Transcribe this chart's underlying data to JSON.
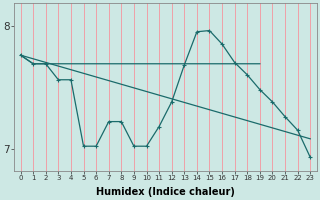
{
  "xlabel": "Humidex (Indice chaleur)",
  "ylabel": "",
  "xlim": [
    -0.5,
    23.5
  ],
  "ylim": [
    6.82,
    8.18
  ],
  "yticks": [
    7,
    8
  ],
  "xticks": [
    0,
    1,
    2,
    3,
    4,
    5,
    6,
    7,
    8,
    9,
    10,
    11,
    12,
    13,
    14,
    15,
    16,
    17,
    18,
    19,
    20,
    21,
    22,
    23
  ],
  "bg_color": "#cde8e4",
  "grid_color": "#f0a0a8",
  "line_color": "#1a6b6b",
  "line1_x": [
    0,
    1,
    2,
    3,
    4,
    5,
    6,
    7,
    8,
    9,
    10,
    11,
    12,
    13,
    14,
    15,
    16,
    17,
    18,
    19,
    20,
    21,
    22,
    23
  ],
  "line1_y": [
    7.76,
    7.69,
    7.69,
    7.56,
    7.56,
    7.02,
    7.02,
    7.22,
    7.22,
    7.02,
    7.02,
    7.18,
    7.38,
    7.68,
    7.95,
    7.96,
    7.85,
    7.7,
    7.6,
    7.48,
    7.38,
    7.26,
    7.15,
    6.93
  ],
  "line2_x": [
    0,
    1,
    2,
    19
  ],
  "line2_y": [
    7.76,
    7.69,
    7.69,
    7.69
  ],
  "line3_x": [
    0,
    23
  ],
  "line3_y": [
    7.76,
    7.08
  ]
}
